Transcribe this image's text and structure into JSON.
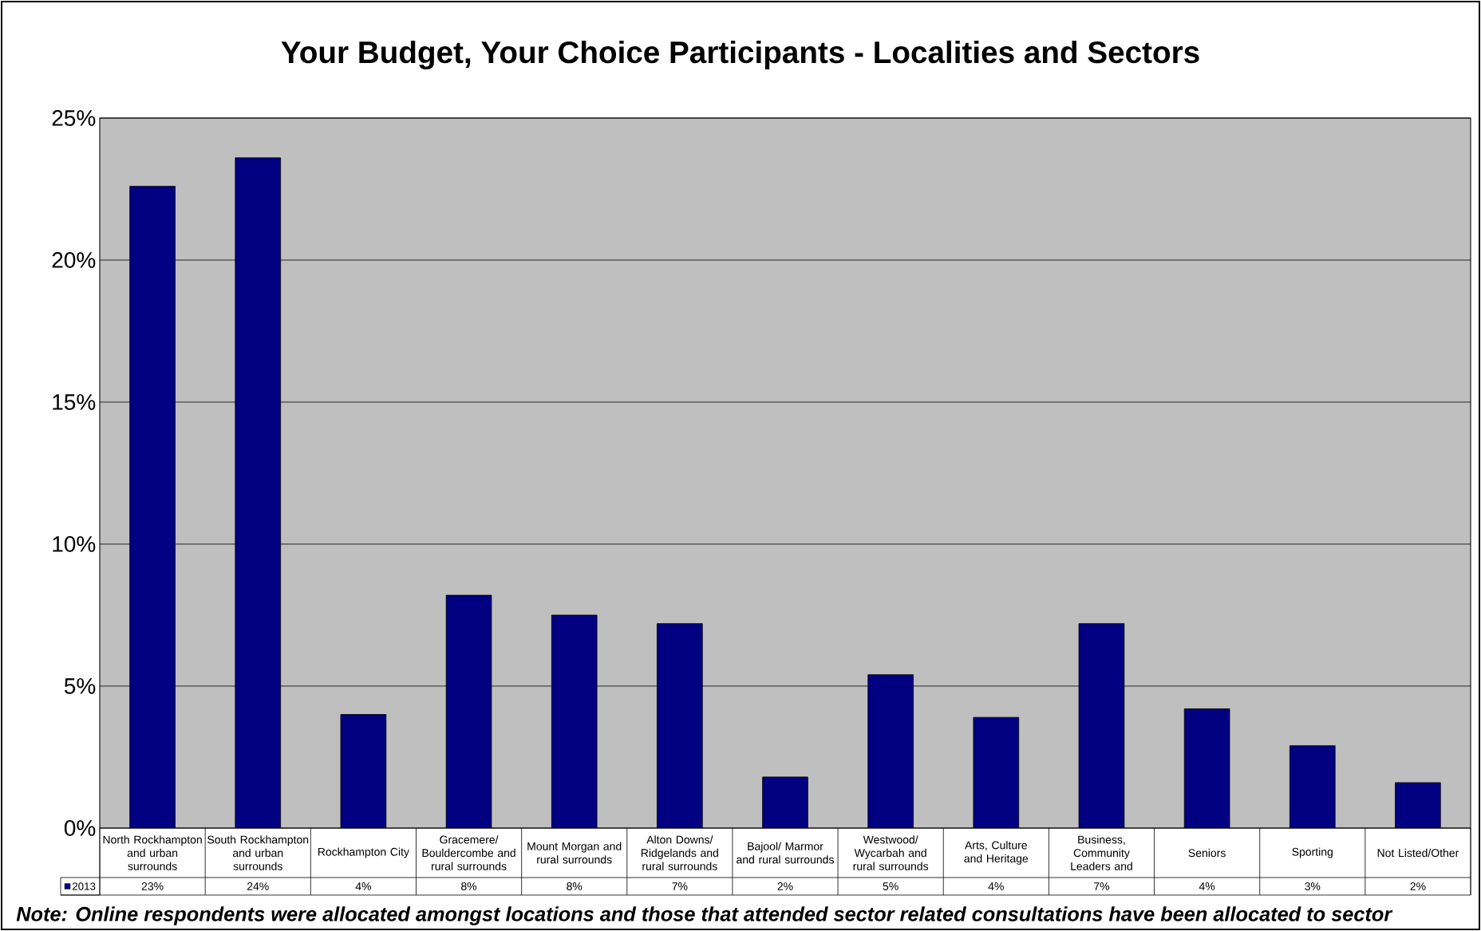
{
  "chart_data": {
    "type": "bar",
    "title": "Your Budget, Your Choice Participants - Localities and Sectors",
    "categories": [
      "North Rockhampton and urban surrounds",
      "South Rockhampton and urban surrounds",
      "Rockhampton City",
      "Gracemere/ Bouldercombe and rural surrounds",
      "Mount Morgan and rural surrounds",
      "Alton Downs/ Ridgelands and rural surrounds",
      "Bajool/ Marmor and rural surrounds",
      "Westwood/ Wycarbah and rural surrounds",
      "Arts, Culture and Heritage",
      "Business, Community Leaders and",
      "Seniors",
      "Sporting",
      "Not Listed/Other"
    ],
    "series": [
      {
        "name": "2013",
        "color": "#000080",
        "values": [
          22.6,
          23.6,
          4.0,
          8.2,
          7.5,
          7.2,
          1.8,
          5.4,
          3.9,
          7.2,
          4.2,
          2.9,
          1.6
        ],
        "value_labels": [
          "23%",
          "24%",
          "4%",
          "8%",
          "8%",
          "7%",
          "2%",
          "5%",
          "4%",
          "7%",
          "4%",
          "3%",
          "2%"
        ]
      }
    ],
    "ylim": [
      0,
      25
    ],
    "yticks": [
      {
        "value": 0,
        "label": "0%"
      },
      {
        "value": 5,
        "label": "5%"
      },
      {
        "value": 10,
        "label": "10%"
      },
      {
        "value": 15,
        "label": "15%"
      },
      {
        "value": 20,
        "label": "20%"
      },
      {
        "value": 25,
        "label": "25%"
      }
    ],
    "grid": "y",
    "legend": "bottom",
    "annotations": [
      "Note: Online respondents were allocated amongst locations and those that attended sector related consultations have been allocated to sector"
    ]
  }
}
